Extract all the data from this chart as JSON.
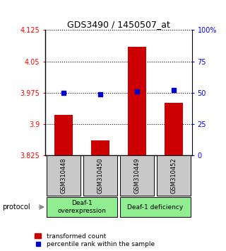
{
  "title": "GDS3490 / 1450507_at",
  "samples": [
    "GSM310448",
    "GSM310450",
    "GSM310449",
    "GSM310452"
  ],
  "bar_values": [
    3.922,
    3.862,
    4.085,
    3.952
  ],
  "percentile_values": [
    50,
    49,
    51,
    52
  ],
  "ylim_left": [
    3.825,
    4.125
  ],
  "ylim_right": [
    0,
    100
  ],
  "yticks_left": [
    3.825,
    3.9,
    3.975,
    4.05,
    4.125
  ],
  "ytick_labels_left": [
    "3.825",
    "3.9",
    "3.975",
    "4.05",
    "4.125"
  ],
  "yticks_right": [
    0,
    25,
    50,
    75,
    100
  ],
  "ytick_labels_right": [
    "0",
    "25",
    "50",
    "75",
    "100%"
  ],
  "bar_color": "#cc0000",
  "dot_color": "#0000cc",
  "bar_bottom": 3.825,
  "groups": [
    {
      "label": "Deaf-1\noverexpression",
      "color": "#90ee90"
    },
    {
      "label": "Deaf-1 deficiency",
      "color": "#90ee90"
    }
  ],
  "protocol_label": "protocol",
  "legend_bar_label": "transformed count",
  "legend_dot_label": "percentile rank within the sample",
  "background_color": "#ffffff",
  "sample_box_color": "#c8c8c8"
}
